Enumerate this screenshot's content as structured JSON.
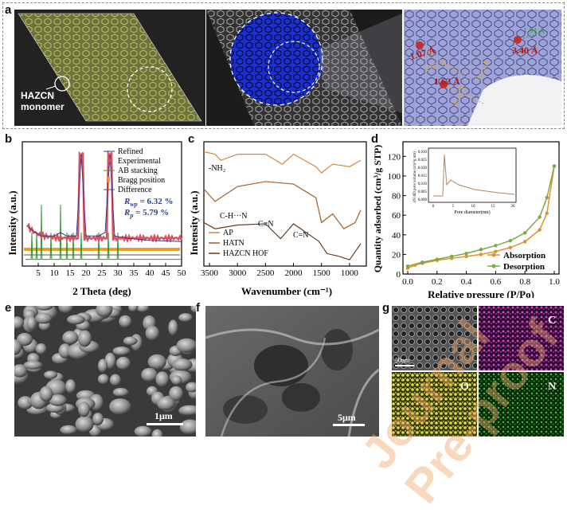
{
  "panels": {
    "a": {
      "label": "a",
      "monomer_label_1": "HAZCN",
      "monomer_label_2": "monomer",
      "distances": [
        "1.07 Å",
        "2.87 Å",
        "1.62 Å",
        "3.40 Å",
        "3.03 Å",
        "1.91 Å",
        "3.03 Å"
      ]
    },
    "b": {
      "label": "b",
      "ylabel": "Intensity (a.u.)",
      "xlabel": "2 Theta (deg)",
      "legend": [
        "Refined",
        "Experimental",
        "AB stacking",
        "Bragg position",
        "Difference"
      ],
      "rwp": "R",
      "rwp_sub": "wp",
      "rwp_val": " = 6.32 %",
      "rp": "R",
      "rp_sub": "p",
      "rp_val": " = 5.79 %",
      "ticks": [
        "5",
        "10",
        "15",
        "20",
        "25",
        "30",
        "35",
        "40",
        "45",
        "50"
      ]
    },
    "c": {
      "label": "c",
      "ylabel": "Intensity (a.u.)",
      "xlabel": "Wavenumber (cm⁻¹)",
      "annotations": [
        "-NH₂",
        "C-H···N",
        "C≡N",
        "C=N"
      ],
      "legend": [
        "AP",
        "HATN",
        "HAZCN HOF"
      ],
      "ticks": [
        "3500",
        "3000",
        "2500",
        "2000",
        "1500",
        "1000"
      ]
    },
    "d": {
      "label": "d",
      "ylabel": "Quantity adsorbed (cm³/g STP)",
      "xlabel": "Relative pressure (P/Po)",
      "legend": [
        "Absorption",
        "Desorption"
      ],
      "yticks": [
        "0",
        "20",
        "40",
        "60",
        "80",
        "100",
        "120"
      ],
      "xticks": [
        "0.0",
        "0.2",
        "0.4",
        "0.6",
        "0.8",
        "1.0"
      ],
      "inset_ylabel": "dV/dD pore volume (cm³/g nm)",
      "inset_xlabel": "Pore diameter(nm)",
      "inset_yticks": [
        "0.000",
        "0.005",
        "0.010",
        "0.015",
        "0.020",
        "0.025",
        "0.030"
      ],
      "inset_xticks": [
        "0",
        "5",
        "10",
        "15",
        "20"
      ]
    },
    "e": {
      "label": "e",
      "scale": "1μm"
    },
    "f": {
      "label": "f",
      "scale": "5μm"
    },
    "g": {
      "label": "g",
      "scale": "50nm",
      "maps": [
        "C",
        "O",
        "N"
      ]
    }
  },
  "watermark": "Journal Pre-proof",
  "colors": {
    "refined": "#3a3a8c",
    "experimental": "#e0505a",
    "ab": "#2a9a2a",
    "bragg": "#e8a020",
    "ap": "#d08a40",
    "hatn": "#a0602a",
    "hof": "#6a3a1a",
    "absorp": "#e09030",
    "desorp": "#7aaa40"
  },
  "chart_data": [
    {
      "type": "line",
      "title": "",
      "xlabel": "2 Theta (deg)",
      "ylabel": "Intensity (a.u.)",
      "xlim": [
        0,
        50
      ],
      "series": [
        {
          "name": "Refined",
          "x": [
            2,
            4,
            6,
            8,
            10,
            12,
            14,
            17,
            18.5,
            20,
            24,
            26,
            27.5,
            29,
            33,
            40,
            50
          ],
          "y": [
            0.35,
            0.3,
            0.27,
            0.27,
            0.27,
            0.3,
            0.27,
            0.27,
            1.0,
            0.27,
            0.27,
            0.3,
            1.0,
            0.27,
            0.25,
            0.23,
            0.22
          ]
        }
      ]
    },
    {
      "type": "line",
      "title": "",
      "xlabel": "Wavenumber (cm⁻¹)",
      "ylabel": "Intensity (a.u.)",
      "xlim": [
        3600,
        700
      ],
      "series": [
        {
          "name": "AP",
          "x": [
            3600,
            3400,
            3300,
            3000,
            2500,
            2200,
            2000,
            1600,
            1500,
            1300,
            1000,
            800
          ],
          "y": [
            0.92,
            0.9,
            0.85,
            0.9,
            0.9,
            0.82,
            0.9,
            0.8,
            0.75,
            0.82,
            0.8,
            0.85
          ]
        },
        {
          "name": "HATN",
          "x": [
            3600,
            3400,
            3000,
            2500,
            2000,
            1600,
            1500,
            1300,
            1100,
            900,
            800
          ],
          "y": [
            0.62,
            0.52,
            0.64,
            0.68,
            0.66,
            0.55,
            0.35,
            0.42,
            0.3,
            0.35,
            0.45
          ]
        },
        {
          "name": "HAZCN HOF",
          "x": [
            3600,
            3400,
            3000,
            2500,
            2230,
            2000,
            1550,
            1400,
            1200,
            1000,
            800
          ],
          "y": [
            0.35,
            0.3,
            0.33,
            0.34,
            0.22,
            0.34,
            0.2,
            0.1,
            0.08,
            0.05,
            0.18
          ]
        }
      ]
    },
    {
      "type": "line",
      "title": "",
      "xlabel": "Relative pressure (P/Po)",
      "ylabel": "Quantity adsorbed (cm³/g STP)",
      "xlim": [
        0,
        1
      ],
      "ylim": [
        0,
        120
      ],
      "series": [
        {
          "name": "Absorption",
          "x": [
            0.0,
            0.05,
            0.1,
            0.2,
            0.3,
            0.4,
            0.5,
            0.6,
            0.7,
            0.8,
            0.9,
            0.95,
            1.0
          ],
          "y": [
            6,
            9,
            11,
            14,
            16,
            18,
            20,
            23,
            27,
            33,
            45,
            62,
            110
          ]
        },
        {
          "name": "Desorption",
          "x": [
            1.0,
            0.95,
            0.9,
            0.8,
            0.7,
            0.6,
            0.5,
            0.4,
            0.3,
            0.2,
            0.1,
            0.0
          ],
          "y": [
            110,
            78,
            58,
            42,
            34,
            29,
            25,
            21,
            18,
            15,
            12,
            8
          ]
        }
      ]
    }
  ]
}
